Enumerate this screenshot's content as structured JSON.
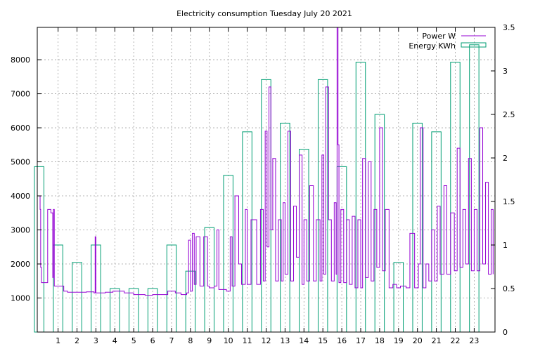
{
  "chart_data": {
    "type": "bar+line",
    "title": "Electricity consumption Tuesday July 20 2021",
    "x_ticks": [
      "1",
      "2",
      "3",
      "4",
      "5",
      "6",
      "7",
      "8",
      "9",
      "10",
      "11",
      "12",
      "13",
      "14",
      "15",
      "16",
      "17",
      "18",
      "19",
      "20",
      "21",
      "22",
      "23"
    ],
    "y_ticks": [
      1000,
      2000,
      3000,
      4000,
      5000,
      6000,
      7000,
      8000
    ],
    "y2_ticks": [
      "0",
      "0.5",
      "1",
      "1.5",
      "2",
      "2.5",
      "3",
      "3.5"
    ],
    "xlim": [
      -0.1,
      24.1
    ],
    "ylim": [
      0,
      8950
    ],
    "y2lim": [
      0,
      3.5
    ],
    "grid": true,
    "legend_position": "top-right",
    "series": [
      {
        "name": "Energy KWh",
        "kind": "boxes",
        "axis": "right",
        "color": "#009e73",
        "x": [
          0,
          1,
          2,
          3,
          4,
          5,
          6,
          7,
          8,
          9,
          10,
          11,
          12,
          13,
          14,
          15,
          16,
          17,
          18,
          19,
          20,
          21,
          22,
          23
        ],
        "values": [
          1.9,
          1.0,
          0.8,
          1.0,
          0.5,
          0.5,
          0.5,
          1.0,
          0.7,
          1.2,
          1.8,
          2.3,
          2.9,
          2.4,
          2.1,
          2.9,
          1.9,
          3.1,
          2.5,
          0.8,
          2.4,
          2.3,
          3.1,
          3.3
        ]
      },
      {
        "name": "Power W",
        "kind": "steps",
        "axis": "left",
        "color": "#9400d3",
        "x": [
          0,
          0.05,
          0.08,
          0.12,
          0.25,
          0.45,
          0.62,
          0.72,
          0.75,
          0.8,
          0.95,
          1.3,
          1.5,
          2.0,
          2.5,
          2.9,
          2.96,
          3.0,
          3.5,
          3.9,
          4.5,
          5.0,
          5.6,
          6.0,
          6.3,
          6.8,
          7.2,
          7.5,
          7.7,
          7.8,
          7.9,
          8.0,
          8.1,
          8.2,
          8.3,
          8.5,
          8.7,
          8.9,
          9.0,
          9.25,
          9.4,
          9.5,
          9.6,
          9.9,
          10.0,
          10.1,
          10.2,
          10.35,
          10.55,
          10.7,
          10.9,
          11.0,
          11.2,
          11.5,
          11.7,
          11.85,
          11.95,
          12.05,
          12.15,
          12.25,
          12.35,
          12.5,
          12.65,
          12.8,
          12.9,
          13.0,
          13.15,
          13.3,
          13.45,
          13.6,
          13.75,
          13.9,
          14.0,
          14.15,
          14.3,
          14.5,
          14.65,
          14.85,
          14.95,
          15.05,
          15.15,
          15.3,
          15.45,
          15.6,
          15.7,
          15.75,
          15.8,
          15.85,
          15.95,
          16.1,
          16.25,
          16.4,
          16.55,
          16.7,
          16.85,
          17.0,
          17.1,
          17.25,
          17.4,
          17.55,
          17.7,
          17.85,
          18.0,
          18.15,
          18.3,
          18.5,
          18.7,
          18.9,
          19.1,
          19.4,
          19.6,
          19.85,
          19.95,
          20.05,
          20.15,
          20.3,
          20.45,
          20.6,
          20.75,
          20.9,
          21.05,
          21.2,
          21.4,
          21.55,
          21.75,
          21.95,
          22.1,
          22.25,
          22.4,
          22.55,
          22.7,
          22.85,
          23.0,
          23.15,
          23.3,
          23.45,
          23.6,
          23.75,
          23.9,
          24.0
        ],
        "values": [
          4000,
          3600,
          1900,
          1450,
          1450,
          3600,
          3500,
          1600,
          3600,
          1350,
          1350,
          1200,
          1170,
          1170,
          1180,
          1150,
          2800,
          1150,
          1170,
          1200,
          1150,
          1100,
          1080,
          1100,
          1100,
          1200,
          1150,
          1100,
          1100,
          1150,
          2700,
          1200,
          2900,
          1400,
          2800,
          1350,
          2800,
          1350,
          1300,
          1350,
          3000,
          1250,
          1250,
          1200,
          1200,
          2800,
          1350,
          4000,
          2000,
          1400,
          3600,
          1400,
          3300,
          1400,
          3600,
          1500,
          5900,
          2500,
          7200,
          3000,
          5100,
          1500,
          3300,
          1500,
          3800,
          1700,
          5900,
          1500,
          3700,
          2200,
          5200,
          1400,
          3300,
          1500,
          4300,
          1500,
          3300,
          1500,
          5200,
          1700,
          7200,
          3300,
          1500,
          3800,
          1700,
          8950,
          5500,
          1450,
          3600,
          1450,
          3300,
          1400,
          3400,
          1300,
          3300,
          1300,
          5100,
          1600,
          5000,
          1500,
          3600,
          1900,
          6000,
          1800,
          3600,
          1300,
          1400,
          1300,
          1350,
          1300,
          2900,
          1300,
          1300,
          2000,
          6000,
          1300,
          2000,
          1500,
          3000,
          1500,
          3700,
          1700,
          4300,
          1700,
          3500,
          1800,
          5400,
          1900,
          3600,
          2000,
          5100,
          1800,
          3600,
          1800,
          6000,
          2000,
          4400,
          1700,
          3600,
          1700
        ]
      }
    ]
  }
}
